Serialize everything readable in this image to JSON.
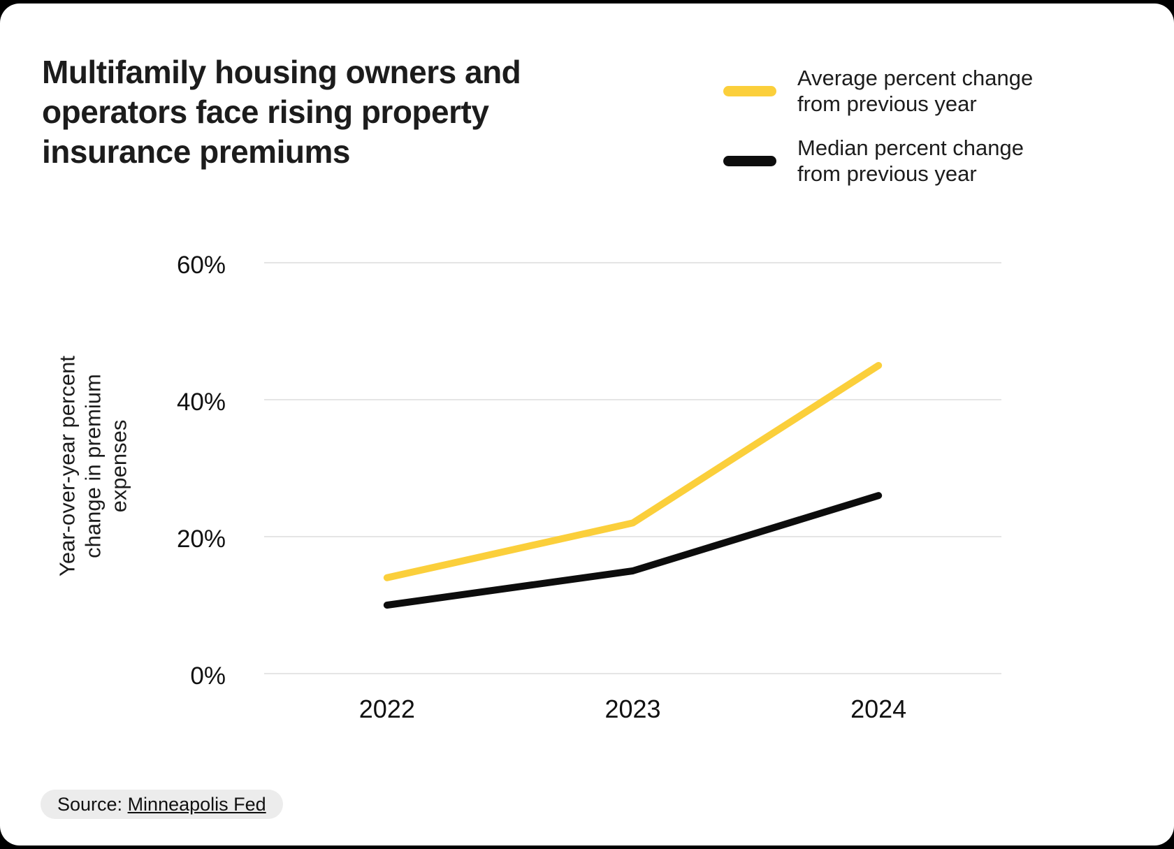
{
  "title_lines": [
    "Multifamily housing owners and",
    "operators face rising property",
    "insurance premiums"
  ],
  "legend": {
    "items": [
      {
        "label_lines": [
          "Average percent change",
          "from previous year"
        ],
        "color": "#FBCF3B"
      },
      {
        "label_lines": [
          "Median percent change",
          "from previous year"
        ],
        "color": "#0d0d0d"
      }
    ]
  },
  "chart_data": {
    "type": "line",
    "categories": [
      "2022",
      "2023",
      "2024"
    ],
    "series": [
      {
        "name": "Average percent change from previous year",
        "color": "#FBCF3B",
        "values": [
          14,
          22,
          45
        ]
      },
      {
        "name": "Median percent change from previous year",
        "color": "#0d0d0d",
        "values": [
          10,
          15,
          26
        ]
      }
    ],
    "title": "Multifamily housing owners and operators face rising property insurance premiums",
    "xlabel": "",
    "ylabel": "Year-over-year percent change in premium expenses",
    "ylabel_lines": [
      "Year-over-year percent",
      "change in premium",
      "expenses"
    ],
    "yticks": [
      0,
      20,
      40,
      60
    ],
    "ytick_suffix": "%",
    "ylim": [
      0,
      60
    ],
    "grid": "horizontal-only",
    "gridline_color": "#e5e5e5",
    "legend_position": "top-right"
  },
  "source": {
    "prefix": "Source: ",
    "link_label": "Minneapolis Fed"
  }
}
